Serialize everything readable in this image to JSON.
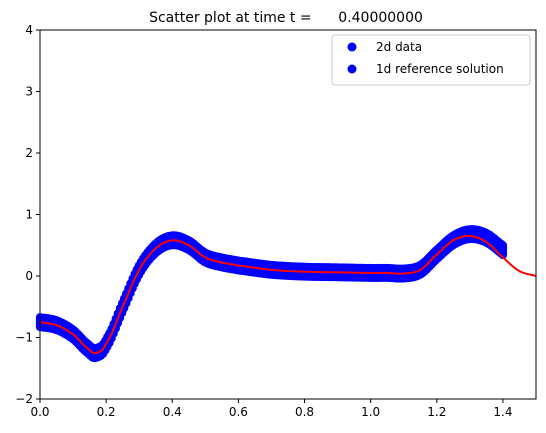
{
  "chart_data": {
    "type": "scatter",
    "title": "Scatter plot at time t =      0.40000000",
    "xlabel": "",
    "ylabel": "",
    "xlim": [
      0,
      1.5
    ],
    "ylim": [
      -2,
      4
    ],
    "xticks": [
      "0.0",
      "0.2",
      "0.4",
      "0.6",
      "0.8",
      "1.0",
      "1.2",
      "1.4"
    ],
    "yticks": [
      "4",
      "3",
      "2",
      "1",
      "0",
      "−1",
      "−2"
    ],
    "grid": false,
    "legend_position": "top-right",
    "series": [
      {
        "name": "2d data",
        "kind": "scatter",
        "color": "#0000ff",
        "x": [
          0.0,
          0.05,
          0.1,
          0.15,
          0.17,
          0.2,
          0.25,
          0.3,
          0.35,
          0.4,
          0.45,
          0.5,
          0.55,
          0.6,
          0.7,
          0.8,
          0.9,
          1.0,
          1.05,
          1.1,
          1.15,
          1.2,
          1.25,
          1.3,
          1.35,
          1.4
        ],
        "y": [
          -0.75,
          -0.8,
          -0.95,
          -1.2,
          -1.25,
          -1.1,
          -0.5,
          0.1,
          0.45,
          0.58,
          0.5,
          0.3,
          0.22,
          0.17,
          0.1,
          0.07,
          0.06,
          0.05,
          0.05,
          0.04,
          0.1,
          0.35,
          0.58,
          0.68,
          0.62,
          0.42
        ]
      },
      {
        "name": "1d reference solution",
        "kind": "line",
        "color": "#ff0000",
        "x": [
          0.0,
          0.05,
          0.1,
          0.15,
          0.17,
          0.2,
          0.25,
          0.3,
          0.35,
          0.4,
          0.45,
          0.5,
          0.55,
          0.6,
          0.7,
          0.8,
          0.9,
          1.0,
          1.05,
          1.1,
          1.15,
          1.2,
          1.25,
          1.3,
          1.35,
          1.4,
          1.45,
          1.5
        ],
        "y": [
          -0.75,
          -0.8,
          -0.95,
          -1.2,
          -1.25,
          -1.1,
          -0.5,
          0.1,
          0.45,
          0.58,
          0.5,
          0.3,
          0.22,
          0.17,
          0.1,
          0.07,
          0.06,
          0.05,
          0.05,
          0.04,
          0.1,
          0.35,
          0.58,
          0.65,
          0.55,
          0.3,
          0.08,
          0.0
        ]
      }
    ],
    "legend_marker_color": "#0000ff"
  }
}
